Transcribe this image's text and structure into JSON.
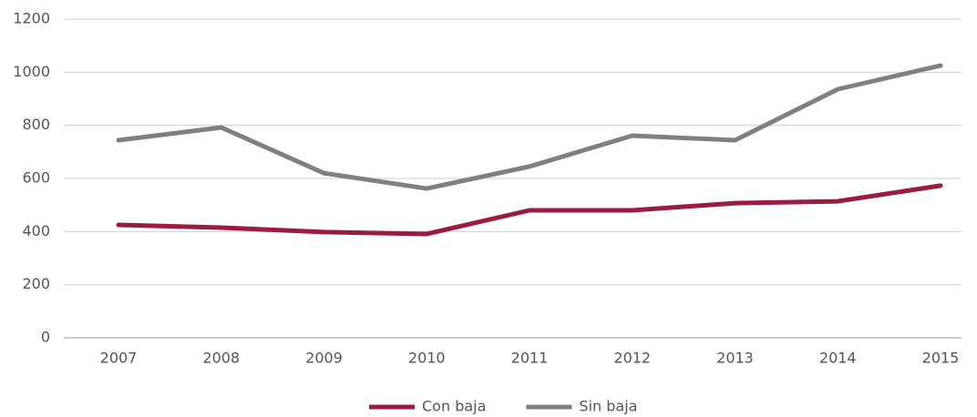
{
  "chart_data": {
    "type": "line",
    "categories": [
      "2007",
      "2008",
      "2009",
      "2010",
      "2011",
      "2012",
      "2013",
      "2014",
      "2015"
    ],
    "series": [
      {
        "name": "Con baja",
        "color": "#9b1c3f",
        "values": [
          425,
          415,
          398,
          391,
          480,
          480,
          507,
          514,
          573
        ]
      },
      {
        "name": "Sin baja",
        "color": "#808080",
        "values": [
          744,
          792,
          620,
          562,
          645,
          761,
          744,
          936,
          1025
        ]
      }
    ],
    "ylim": [
      0,
      1200
    ],
    "yticks": [
      0,
      200,
      400,
      600,
      800,
      1000,
      1200
    ],
    "grid": true,
    "legend": "bottom"
  }
}
